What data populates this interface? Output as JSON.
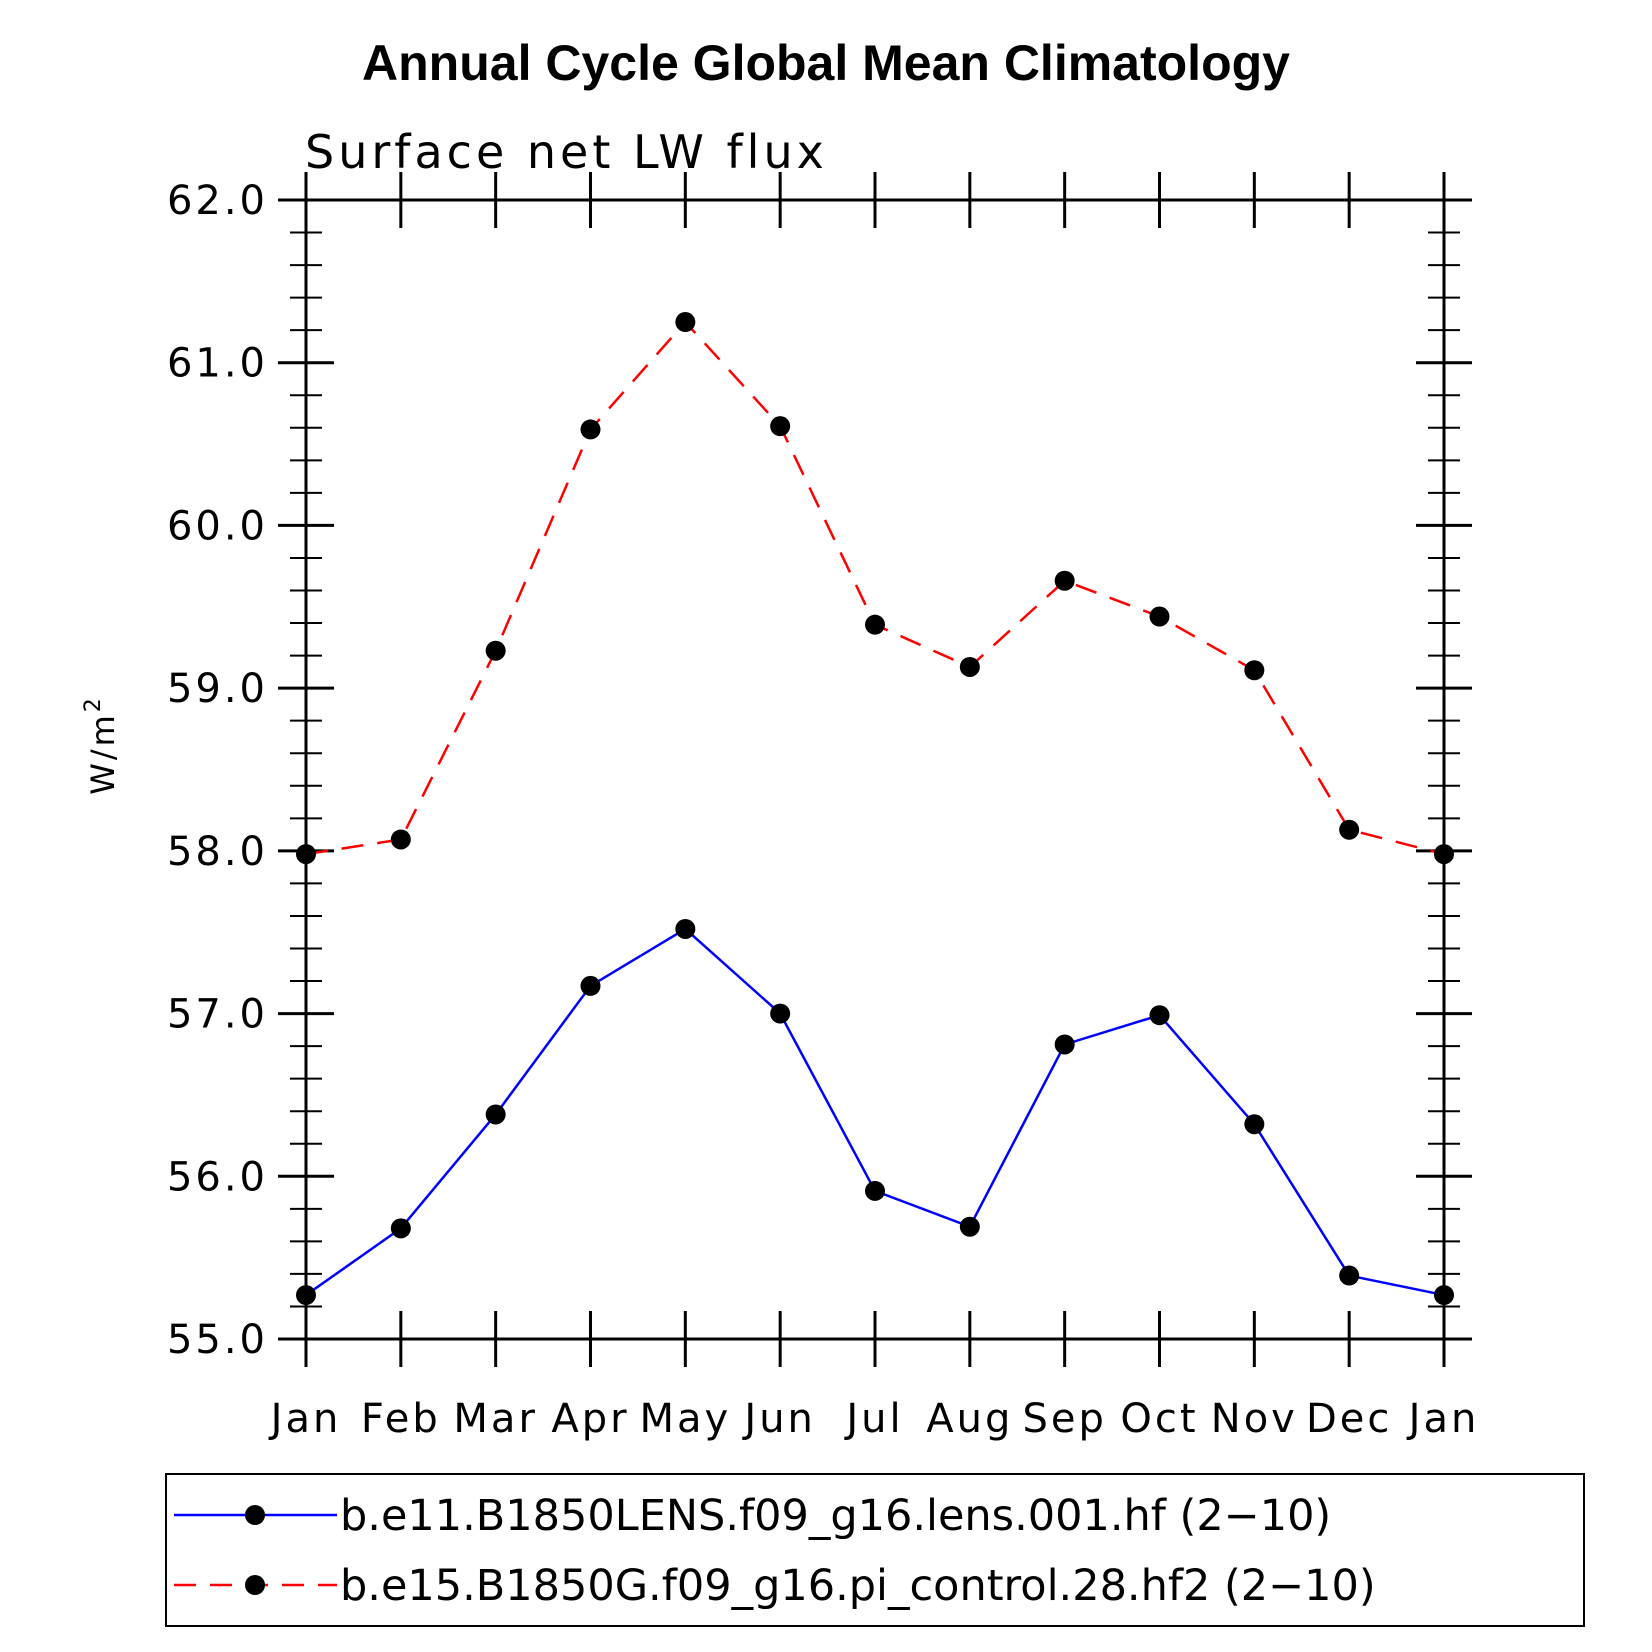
{
  "chart_data": {
    "type": "line",
    "title": "Annual Cycle Global Mean Climatology",
    "subtitle": "Surface net LW flux",
    "ylabel": "W/m",
    "ylabel_superscript": "2",
    "xlabel": "",
    "categories": [
      "Jan",
      "Feb",
      "Mar",
      "Apr",
      "May",
      "Jun",
      "Jul",
      "Aug",
      "Sep",
      "Oct",
      "Nov",
      "Dec",
      "Jan"
    ],
    "ylim": [
      55.0,
      62.0
    ],
    "yticks": [
      "55.0",
      "56.0",
      "57.0",
      "58.0",
      "59.0",
      "60.0",
      "61.0",
      "62.0"
    ],
    "yminor_step": 0.2,
    "grid": false,
    "legend_position": "bottom",
    "series": [
      {
        "name": "b.e11.B1850LENS.f09_g16.lens.001.hf (2−10)",
        "color": "#0000ff",
        "dash": "solid",
        "marker_color": "#000000",
        "values": [
          55.27,
          55.68,
          56.38,
          57.17,
          57.52,
          57.0,
          55.91,
          55.69,
          56.81,
          56.99,
          56.32,
          55.39,
          55.27
        ]
      },
      {
        "name": "b.e15.B1850G.f09_g16.pi_control.28.hf2 (2−10)",
        "color": "#ff0000",
        "dash": "dashed",
        "marker_color": "#000000",
        "values": [
          57.98,
          58.07,
          59.23,
          60.59,
          61.25,
          60.61,
          59.39,
          59.13,
          59.66,
          59.44,
          59.11,
          58.13,
          57.98
        ]
      }
    ]
  }
}
